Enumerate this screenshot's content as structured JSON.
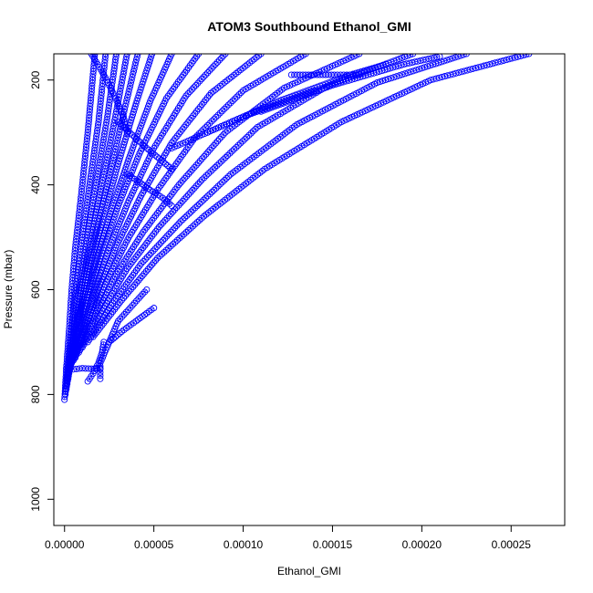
{
  "chart_data": {
    "type": "scatter",
    "title": "ATOM3 Southbound Ethanol_GMI",
    "xlabel": "Ethanol_GMI",
    "ylabel": "Pressure (mbar)",
    "xlim": [
      -6e-06,
      0.00028
    ],
    "ylim": [
      1050,
      150
    ],
    "y_reversed": true,
    "x_ticks": [
      0,
      5e-05,
      0.0001,
      0.00015,
      0.0002,
      0.00025
    ],
    "x_tick_labels": [
      "0.00000",
      "0.00005",
      "0.00010",
      "0.00015",
      "0.00020",
      "0.00025"
    ],
    "y_ticks": [
      200,
      400,
      600,
      800,
      1000
    ],
    "y_tick_labels": [
      "200",
      "400",
      "600",
      "800",
      "1000"
    ],
    "marker": "open-circle",
    "connected": true,
    "grid": false,
    "color": "#0000ff",
    "profiles": [
      {
        "x": [
          0.0,
          1e-06,
          2.5e-06,
          4e-06,
          6e-06,
          9e-06,
          1.3e-05,
          1.7e-05
        ],
        "y": [
          810,
          750,
          680,
          600,
          520,
          430,
          300,
          150
        ]
      },
      {
        "x": [
          5e-07,
          2e-06,
          4e-06,
          6.5e-06,
          1e-05,
          1.4e-05,
          1.9e-05,
          2.3e-05
        ],
        "y": [
          800,
          740,
          670,
          590,
          500,
          400,
          280,
          150
        ]
      },
      {
        "x": [
          1e-06,
          3e-06,
          5.5e-06,
          9e-06,
          1.3e-05,
          1.8e-05,
          2.4e-05,
          2.9e-05
        ],
        "y": [
          790,
          730,
          660,
          580,
          490,
          390,
          270,
          150
        ]
      },
      {
        "x": [
          1.5e-06,
          4e-06,
          7e-06,
          1.1e-05,
          1.6e-05,
          2.2e-05,
          2.9e-05,
          3.5e-05
        ],
        "y": [
          780,
          720,
          650,
          570,
          480,
          380,
          260,
          150
        ]
      },
      {
        "x": [
          2e-06,
          5e-06,
          8.5e-06,
          1.3e-05,
          1.9e-05,
          2.6e-05,
          3.4e-05,
          4.1e-05
        ],
        "y": [
          770,
          710,
          640,
          560,
          470,
          370,
          250,
          150
        ]
      },
      {
        "x": [
          2.5e-06,
          6e-06,
          1e-05,
          1.5e-05,
          2.2e-05,
          3e-05,
          4e-05,
          4.9e-05
        ],
        "y": [
          760,
          700,
          630,
          550,
          460,
          360,
          245,
          150
        ]
      },
      {
        "x": [
          3e-06,
          7e-06,
          1.2e-05,
          1.8e-05,
          2.6e-05,
          3.6e-05,
          4.8e-05,
          6e-05
        ],
        "y": [
          750,
          690,
          620,
          540,
          450,
          350,
          240,
          150
        ]
      },
      {
        "x": [
          3.5e-06,
          8e-06,
          1.4e-05,
          2.1e-05,
          3e-05,
          4.2e-05,
          5.7e-05,
          7.5e-05
        ],
        "y": [
          745,
          685,
          610,
          530,
          440,
          340,
          235,
          150
        ]
      },
      {
        "x": [
          4e-06,
          1e-05,
          1.7e-05,
          2.5e-05,
          3.6e-05,
          5e-05,
          6.8e-05,
          9e-05
        ],
        "y": [
          740,
          680,
          600,
          520,
          430,
          330,
          230,
          150
        ]
      },
      {
        "x": [
          5e-06,
          1.2e-05,
          2e-05,
          3e-05,
          4.3e-05,
          6e-05,
          8.2e-05,
          0.00011
        ],
        "y": [
          735,
          670,
          590,
          510,
          420,
          320,
          225,
          150
        ]
      },
      {
        "x": [
          6e-06,
          1.4e-05,
          2.4e-05,
          3.6e-05,
          5.2e-05,
          7.3e-05,
          0.0001,
          0.000135
        ],
        "y": [
          730,
          660,
          580,
          500,
          410,
          310,
          220,
          150
        ]
      },
      {
        "x": [
          8e-06,
          1.7e-05,
          2.9e-05,
          4.4e-05,
          6.4e-05,
          9e-05,
          0.000123,
          0.000165
        ],
        "y": [
          720,
          650,
          570,
          490,
          400,
          300,
          215,
          150
        ]
      },
      {
        "x": [
          1e-05,
          2.1e-05,
          3.5e-05,
          5.3e-05,
          7.7e-05,
          0.000108,
          0.000148,
          0.000195
        ],
        "y": [
          710,
          640,
          560,
          480,
          390,
          290,
          210,
          150
        ]
      },
      {
        "x": [
          1.3e-05,
          2.6e-05,
          4.3e-05,
          6.5e-05,
          9.3e-05,
          0.00013,
          0.000175,
          0.000225
        ],
        "y": [
          700,
          630,
          550,
          470,
          380,
          285,
          205,
          150
        ]
      },
      {
        "x": [
          1.6e-05,
          3.2e-05,
          5.2e-05,
          7.8e-05,
          0.000112,
          0.000155,
          0.000205,
          0.00026
        ],
        "y": [
          690,
          620,
          540,
          460,
          370,
          280,
          200,
          150
        ]
      },
      {
        "x": [
          2e-05,
          2e-05,
          2.5e-05,
          3e-05,
          3.8e-05,
          4.6e-05
        ],
        "y": [
          770,
          740,
          700,
          660,
          630,
          600
        ]
      },
      {
        "x": [
          2.5e-05,
          3.2e-05,
          4e-05,
          4.6e-05,
          5e-05
        ],
        "y": [
          700,
          680,
          660,
          645,
          635
        ]
      },
      {
        "x": [
          1e-06,
          5e-06,
          1e-05,
          1.5e-05,
          2e-05
        ],
        "y": [
          750,
          752,
          750,
          751,
          750
        ]
      },
      {
        "x": [
          1.3e-05,
          1.6e-05,
          1.9e-05,
          2.1e-05,
          2.2e-05
        ],
        "y": [
          775,
          760,
          740,
          720,
          700
        ]
      },
      {
        "x": [
          3e-05,
          3.8e-05,
          4.6e-05,
          5.3e-05,
          6e-05
        ],
        "y": [
          280,
          305,
          330,
          350,
          370
        ]
      },
      {
        "x": [
          1.5e-05,
          2.2e-05,
          2.8e-05,
          3.3e-05,
          3.5e-05
        ],
        "y": [
          150,
          190,
          230,
          270,
          300
        ]
      },
      {
        "x": [
          3.5e-05,
          4.2e-05,
          4.8e-05,
          5.5e-05,
          6e-05
        ],
        "y": [
          380,
          395,
          410,
          425,
          440
        ]
      },
      {
        "x": [
          0.000127,
          0.000135,
          0.000143,
          0.000151,
          0.000158,
          0.000165
        ],
        "y": [
          190,
          190,
          190,
          190,
          190,
          190
        ]
      },
      {
        "x": [
          6e-05,
          8e-05,
          0.0001,
          0.00012,
          0.00014
        ],
        "y": [
          330,
          300,
          270,
          245,
          220
        ]
      },
      {
        "x": [
          8e-05,
          0.0001,
          0.00012,
          0.00014,
          0.00016,
          0.00018
        ],
        "y": [
          300,
          270,
          240,
          215,
          190,
          170
        ]
      },
      {
        "x": [
          0.00011,
          0.00013,
          0.00015,
          0.00017,
          0.00019,
          0.00021
        ],
        "y": [
          260,
          235,
          210,
          190,
          170,
          155
        ]
      }
    ]
  }
}
